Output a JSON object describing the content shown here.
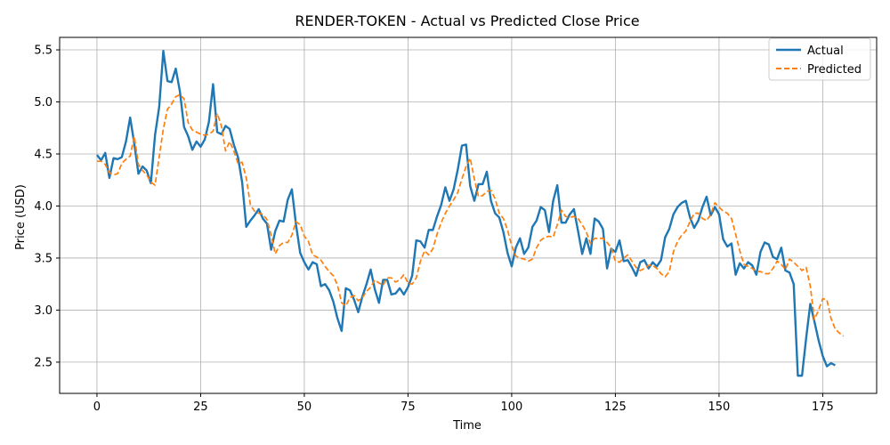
{
  "chart_data": {
    "type": "line",
    "title": "RENDER-TOKEN - Actual vs Predicted Close Price",
    "xlabel": "Time",
    "ylabel": "Price (USD)",
    "xlim": [
      -9,
      188
    ],
    "ylim": [
      2.2,
      5.62
    ],
    "xticks": [
      0,
      25,
      50,
      75,
      100,
      125,
      150,
      175
    ],
    "yticks": [
      2.5,
      3.0,
      3.5,
      4.0,
      4.5,
      5.0,
      5.5
    ],
    "xtick_labels": [
      "0",
      "25",
      "50",
      "75",
      "100",
      "125",
      "150",
      "175"
    ],
    "ytick_labels": [
      "2.5",
      "3.0",
      "3.5",
      "4.0",
      "4.5",
      "5.0",
      "5.5"
    ],
    "grid": true,
    "legend_position": "top-right",
    "series": [
      {
        "name": "Actual",
        "color": "#1f77b4",
        "style": "solid",
        "values": [
          4.49,
          4.44,
          4.51,
          4.27,
          4.46,
          4.45,
          4.47,
          4.62,
          4.85,
          4.6,
          4.31,
          4.38,
          4.34,
          4.22,
          4.68,
          4.95,
          5.49,
          5.2,
          5.19,
          5.32,
          5.1,
          4.76,
          4.67,
          4.54,
          4.62,
          4.57,
          4.64,
          4.81,
          5.17,
          4.71,
          4.69,
          4.77,
          4.74,
          4.59,
          4.47,
          4.23,
          3.8,
          3.86,
          3.91,
          3.97,
          3.88,
          3.83,
          3.58,
          3.76,
          3.86,
          3.85,
          4.06,
          4.16,
          3.82,
          3.55,
          3.46,
          3.39,
          3.46,
          3.44,
          3.23,
          3.25,
          3.19,
          3.08,
          2.92,
          2.8,
          3.21,
          3.19,
          3.1,
          2.98,
          3.13,
          3.25,
          3.39,
          3.2,
          3.07,
          3.29,
          3.29,
          3.15,
          3.16,
          3.21,
          3.15,
          3.22,
          3.33,
          3.67,
          3.66,
          3.6,
          3.77,
          3.77,
          3.9,
          4.01,
          4.18,
          4.05,
          4.16,
          4.35,
          4.58,
          4.59,
          4.19,
          4.05,
          4.21,
          4.21,
          4.33,
          4.05,
          3.93,
          3.89,
          3.75,
          3.55,
          3.42,
          3.6,
          3.69,
          3.54,
          3.6,
          3.8,
          3.86,
          3.99,
          3.96,
          3.75,
          4.05,
          4.2,
          3.84,
          3.84,
          3.92,
          3.97,
          3.76,
          3.54,
          3.69,
          3.54,
          3.88,
          3.85,
          3.78,
          3.4,
          3.59,
          3.56,
          3.67,
          3.47,
          3.48,
          3.41,
          3.33,
          3.46,
          3.48,
          3.4,
          3.46,
          3.42,
          3.48,
          3.7,
          3.78,
          3.92,
          3.99,
          4.03,
          4.05,
          3.89,
          3.79,
          3.86,
          3.99,
          4.09,
          3.91,
          3.99,
          3.92,
          3.68,
          3.61,
          3.64,
          3.34,
          3.45,
          3.4,
          3.46,
          3.43,
          3.34,
          3.56,
          3.65,
          3.63,
          3.51,
          3.49,
          3.6,
          3.38,
          3.36,
          3.25,
          2.37,
          2.37,
          2.73,
          3.06,
          2.89,
          2.71,
          2.56,
          2.46,
          2.49,
          2.47
        ]
      },
      {
        "name": "Predicted",
        "color": "#ff7f0e",
        "style": "dashed",
        "values": [
          4.43,
          4.43,
          4.4,
          4.32,
          4.3,
          4.31,
          4.41,
          4.45,
          4.48,
          4.67,
          4.4,
          4.34,
          4.3,
          4.23,
          4.2,
          4.47,
          4.74,
          4.93,
          4.98,
          5.05,
          5.07,
          5.03,
          4.8,
          4.73,
          4.71,
          4.69,
          4.68,
          4.69,
          4.72,
          4.89,
          4.77,
          4.53,
          4.62,
          4.53,
          4.41,
          4.42,
          4.27,
          4.01,
          3.95,
          3.93,
          3.92,
          3.87,
          3.72,
          3.54,
          3.62,
          3.65,
          3.65,
          3.72,
          3.85,
          3.82,
          3.71,
          3.66,
          3.53,
          3.51,
          3.48,
          3.42,
          3.37,
          3.33,
          3.24,
          3.07,
          3.04,
          3.12,
          3.14,
          3.09,
          3.12,
          3.18,
          3.22,
          3.29,
          3.26,
          3.24,
          3.31,
          3.31,
          3.27,
          3.29,
          3.34,
          3.26,
          3.25,
          3.31,
          3.47,
          3.57,
          3.53,
          3.59,
          3.73,
          3.84,
          3.93,
          4.0,
          4.06,
          4.13,
          4.26,
          4.38,
          4.46,
          4.26,
          4.09,
          4.1,
          4.14,
          4.15,
          4.07,
          3.93,
          3.88,
          3.77,
          3.62,
          3.52,
          3.5,
          3.49,
          3.47,
          3.49,
          3.6,
          3.67,
          3.7,
          3.71,
          3.7,
          3.82,
          3.96,
          3.9,
          3.89,
          3.9,
          3.88,
          3.82,
          3.75,
          3.64,
          3.69,
          3.69,
          3.69,
          3.65,
          3.6,
          3.47,
          3.46,
          3.5,
          3.53,
          3.47,
          3.41,
          3.38,
          3.4,
          3.43,
          3.43,
          3.4,
          3.35,
          3.32,
          3.37,
          3.56,
          3.66,
          3.72,
          3.76,
          3.85,
          3.93,
          3.93,
          3.88,
          3.86,
          3.92,
          4.03,
          3.99,
          3.95,
          3.93,
          3.88,
          3.73,
          3.57,
          3.44,
          3.42,
          3.4,
          3.37,
          3.37,
          3.35,
          3.35,
          3.4,
          3.47,
          3.44,
          3.39,
          3.49,
          3.46,
          3.42,
          3.38,
          3.41,
          3.23,
          2.91,
          3.0,
          3.11,
          3.1,
          2.92,
          2.82,
          2.78,
          2.75
        ]
      }
    ]
  }
}
